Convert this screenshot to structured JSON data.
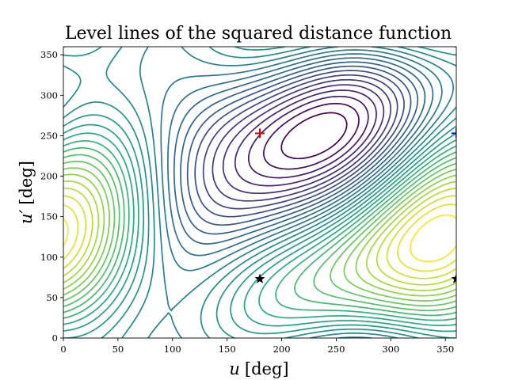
{
  "chart_data": {
    "type": "contour",
    "title": "Level lines of the squared distance function",
    "xlabel": {
      "symbol": "u",
      "unit": "[deg]"
    },
    "ylabel": {
      "symbol": "u′",
      "unit": "[deg]"
    },
    "xlim": [
      0,
      360
    ],
    "ylim": [
      0,
      360
    ],
    "xticks": [
      "0",
      "50",
      "100",
      "150",
      "200",
      "250",
      "300",
      "350"
    ],
    "yticks": [
      "0",
      "50",
      "100",
      "150",
      "200",
      "250",
      "300",
      "350"
    ],
    "xtick_values": [
      0,
      50,
      100,
      150,
      200,
      250,
      300,
      350
    ],
    "ytick_values": [
      0,
      50,
      100,
      150,
      200,
      250,
      300,
      350
    ],
    "colormap": "viridis",
    "grid": false,
    "contour_levels": 30,
    "markers": [
      {
        "shape": "plus",
        "x": 180,
        "y": 253,
        "color": "#e00000"
      },
      {
        "shape": "plus",
        "x": 360,
        "y": 253,
        "color": "#0010d0"
      },
      {
        "shape": "star",
        "x": 180,
        "y": 73,
        "color": "#000000"
      },
      {
        "shape": "star",
        "x": 360,
        "y": 73,
        "color": "#000000"
      }
    ]
  }
}
